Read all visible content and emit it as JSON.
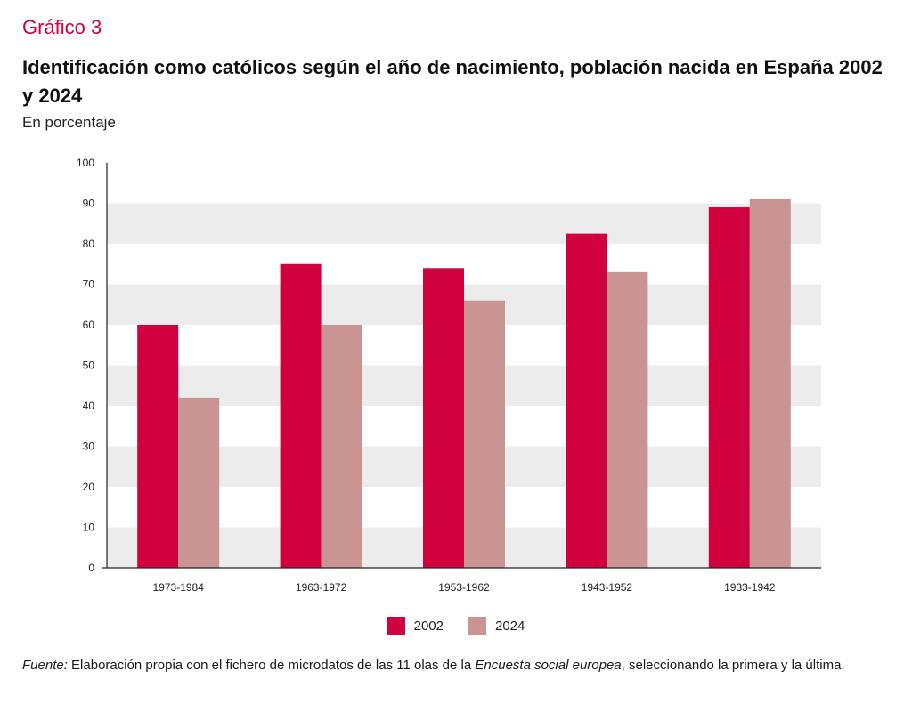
{
  "figure_label": "Gráfico 3",
  "title": "Identificación como católicos según el año de nacimiento, población nacida en España 2002 y 2024",
  "subtitle": "En porcentaje",
  "chart_data": {
    "type": "bar",
    "categories": [
      "1973-1984",
      "1963-1972",
      "1953-1962",
      "1943-1952",
      "1933-1942"
    ],
    "series": [
      {
        "name": "2002",
        "color": "#d1003f",
        "values": [
          60,
          75,
          74,
          82.5,
          89
        ]
      },
      {
        "name": "2024",
        "color": "#c99491",
        "values": [
          42,
          60,
          66,
          73,
          91
        ]
      }
    ],
    "ylim": [
      0,
      100
    ],
    "yticks": [
      0,
      10,
      20,
      30,
      40,
      50,
      60,
      70,
      80,
      90,
      100
    ],
    "grid": "alternating horizontal bands",
    "legend_position": "bottom-center"
  },
  "source": {
    "label": "Fuente:",
    "text_before": " Elaboración propia con el fichero de microdatos de las 11 olas de la ",
    "italic": "Encuesta social europea",
    "text_after": ", seleccionando la primera y la última."
  }
}
